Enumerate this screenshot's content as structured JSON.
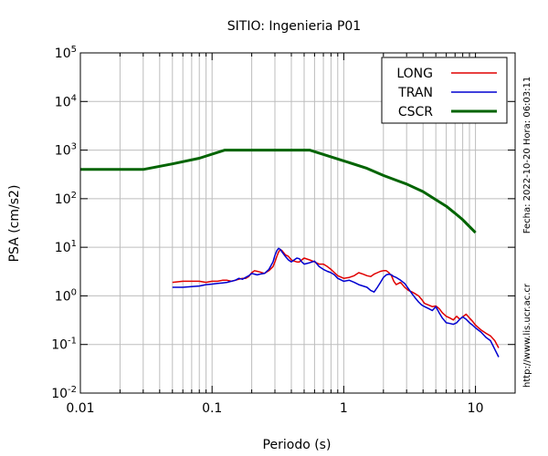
{
  "chart_data": {
    "type": "line",
    "title": "SITIO: Ingenieria P01",
    "xlabel": "Periodo (s)",
    "ylabel": "PSA (cm/s2)",
    "x_scale": "log",
    "y_scale": "log",
    "xlim": [
      0.01,
      20
    ],
    "ylim": [
      0.01,
      100000
    ],
    "x_ticks": [
      {
        "value": 0.01,
        "label": "0.01"
      },
      {
        "value": 0.1,
        "label": "0.1"
      },
      {
        "value": 1,
        "label": "1"
      },
      {
        "value": 10,
        "label": "10"
      }
    ],
    "y_ticks": [
      {
        "value": 0.01,
        "base": "10",
        "exp": "-2"
      },
      {
        "value": 0.1,
        "base": "10",
        "exp": "-1"
      },
      {
        "value": 1,
        "base": "10",
        "exp": "0"
      },
      {
        "value": 10,
        "base": "10",
        "exp": "1"
      },
      {
        "value": 100,
        "base": "10",
        "exp": "2"
      },
      {
        "value": 1000,
        "base": "10",
        "exp": "3"
      },
      {
        "value": 10000,
        "base": "10",
        "exp": "4"
      },
      {
        "value": 100000,
        "base": "10",
        "exp": "5"
      }
    ],
    "grid": true,
    "legend_position": "top-right",
    "side_labels": {
      "date": "Fecha: 2022-10-20  Hora: 06:03:11",
      "url": "http://www.lis.ucr.ac.cr"
    },
    "series": [
      {
        "name": "LONG",
        "color": "#e00000",
        "x": [
          0.05,
          0.06,
          0.07,
          0.08,
          0.09,
          0.1,
          0.11,
          0.12,
          0.13,
          0.14,
          0.15,
          0.16,
          0.17,
          0.18,
          0.19,
          0.2,
          0.21,
          0.22,
          0.23,
          0.25,
          0.27,
          0.29,
          0.3,
          0.31,
          0.32,
          0.33,
          0.34,
          0.36,
          0.38,
          0.4,
          0.42,
          0.44,
          0.46,
          0.48,
          0.5,
          0.55,
          0.6,
          0.65,
          0.7,
          0.75,
          0.8,
          0.85,
          0.9,
          1.0,
          1.1,
          1.2,
          1.3,
          1.4,
          1.5,
          1.6,
          1.7,
          1.8,
          1.9,
          2.0,
          2.1,
          2.2,
          2.3,
          2.4,
          2.5,
          2.7,
          2.9,
          3.1,
          3.3,
          3.5,
          3.7,
          3.9,
          4.1,
          4.4,
          4.7,
          5.0,
          5.3,
          5.6,
          6.0,
          6.4,
          6.8,
          7.2,
          7.6,
          8.0,
          8.5,
          9.0,
          9.5,
          10,
          11,
          12,
          13,
          14,
          15
        ],
        "values": [
          1.9,
          2.0,
          2.0,
          2.0,
          1.9,
          2.0,
          2.0,
          2.1,
          2.1,
          2.0,
          2.1,
          2.2,
          2.3,
          2.3,
          2.5,
          3.0,
          3.3,
          3.2,
          3.1,
          2.9,
          3.3,
          4.0,
          5.0,
          6.5,
          8.0,
          9.0,
          8.5,
          7.0,
          6.5,
          5.5,
          5.2,
          5.0,
          5.0,
          5.5,
          6.0,
          5.5,
          5.0,
          4.5,
          4.5,
          4.0,
          3.5,
          3.0,
          2.6,
          2.3,
          2.4,
          2.6,
          3.0,
          2.8,
          2.6,
          2.5,
          2.8,
          3.0,
          3.2,
          3.3,
          3.3,
          3.0,
          2.6,
          2.0,
          1.7,
          1.9,
          1.5,
          1.3,
          1.2,
          1.1,
          1.0,
          0.85,
          0.7,
          0.65,
          0.6,
          0.62,
          0.55,
          0.45,
          0.38,
          0.35,
          0.32,
          0.38,
          0.33,
          0.37,
          0.42,
          0.35,
          0.3,
          0.25,
          0.2,
          0.17,
          0.15,
          0.12,
          0.085
        ]
      },
      {
        "name": "TRAN",
        "color": "#0000d0",
        "x": [
          0.05,
          0.06,
          0.07,
          0.08,
          0.09,
          0.1,
          0.11,
          0.12,
          0.13,
          0.14,
          0.15,
          0.16,
          0.17,
          0.18,
          0.19,
          0.2,
          0.21,
          0.22,
          0.23,
          0.25,
          0.27,
          0.29,
          0.3,
          0.31,
          0.32,
          0.33,
          0.34,
          0.36,
          0.38,
          0.4,
          0.42,
          0.44,
          0.46,
          0.48,
          0.5,
          0.55,
          0.6,
          0.65,
          0.7,
          0.75,
          0.8,
          0.85,
          0.9,
          1.0,
          1.1,
          1.2,
          1.3,
          1.4,
          1.5,
          1.6,
          1.7,
          1.8,
          1.9,
          2.0,
          2.1,
          2.2,
          2.3,
          2.4,
          2.5,
          2.7,
          2.9,
          3.1,
          3.3,
          3.5,
          3.7,
          3.9,
          4.1,
          4.4,
          4.7,
          5.0,
          5.3,
          5.6,
          6.0,
          6.4,
          6.8,
          7.2,
          7.6,
          8.0,
          8.5,
          9.0,
          9.5,
          10,
          11,
          12,
          13,
          14,
          15
        ],
        "values": [
          1.5,
          1.5,
          1.55,
          1.6,
          1.7,
          1.75,
          1.8,
          1.85,
          1.9,
          2.0,
          2.1,
          2.3,
          2.2,
          2.4,
          2.6,
          2.9,
          2.8,
          2.7,
          2.8,
          2.9,
          3.5,
          5.0,
          6.8,
          8.5,
          9.5,
          9.0,
          8.0,
          6.5,
          5.5,
          5.0,
          5.5,
          6.0,
          5.8,
          5.0,
          4.5,
          4.8,
          5.2,
          4.0,
          3.5,
          3.2,
          3.0,
          2.7,
          2.3,
          2.0,
          2.1,
          1.9,
          1.7,
          1.6,
          1.5,
          1.3,
          1.2,
          1.5,
          1.9,
          2.4,
          2.7,
          2.8,
          2.7,
          2.5,
          2.4,
          2.1,
          1.8,
          1.4,
          1.1,
          0.9,
          0.75,
          0.65,
          0.6,
          0.55,
          0.5,
          0.6,
          0.45,
          0.35,
          0.28,
          0.27,
          0.26,
          0.28,
          0.33,
          0.37,
          0.33,
          0.28,
          0.25,
          0.22,
          0.18,
          0.14,
          0.12,
          0.08,
          0.055
        ]
      },
      {
        "name": "CSCR",
        "color": "#006400",
        "x": [
          0.01,
          0.03,
          0.05,
          0.08,
          0.125,
          0.2,
          0.55,
          1.0,
          1.5,
          2.0,
          2.5,
          3.0,
          4.0,
          5.0,
          6.0,
          7.0,
          8.0,
          10
        ],
        "values": [
          400,
          400,
          520,
          680,
          1000,
          1000,
          1000,
          600,
          420,
          300,
          240,
          200,
          140,
          95,
          70,
          50,
          37,
          20
        ]
      }
    ]
  }
}
